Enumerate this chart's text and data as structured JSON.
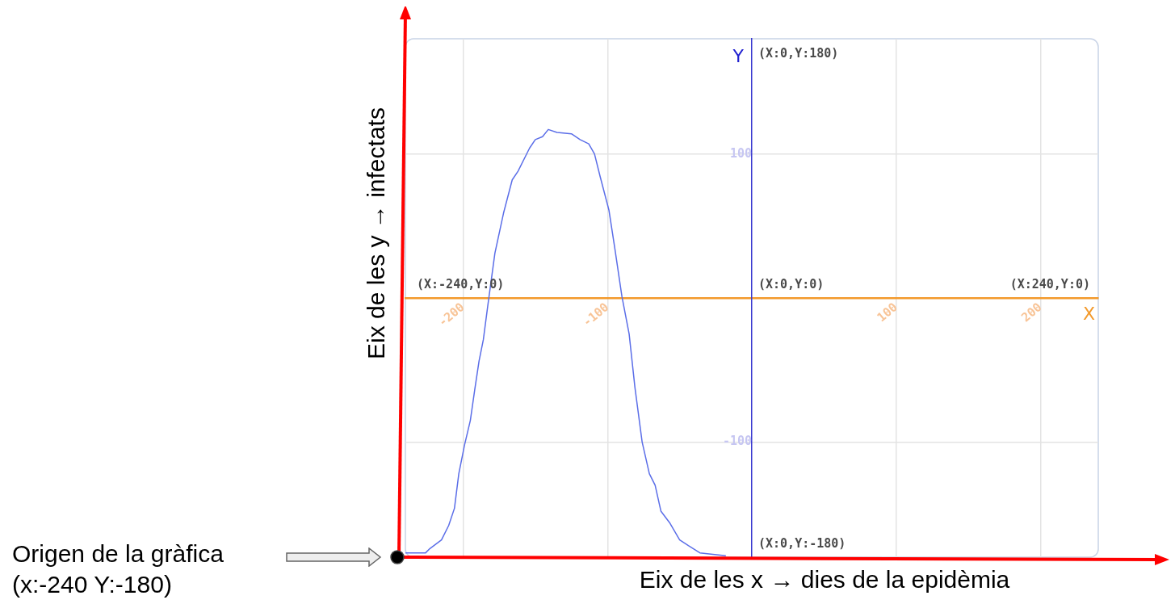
{
  "chart_data": {
    "type": "line",
    "xlabel": "X",
    "ylabel": "Y",
    "xlim": [
      -240,
      240
    ],
    "ylim": [
      -180,
      180
    ],
    "xticks": [
      -200,
      -100,
      100,
      200
    ],
    "yticks": [
      -100,
      100
    ],
    "grid": true,
    "legend": false,
    "marker": "none",
    "line_style": "solid",
    "x": [
      -240,
      -226,
      -223,
      -215,
      -210,
      -206,
      -203,
      -199,
      -195,
      -192,
      -189,
      -186,
      -183,
      -178,
      -172,
      -166,
      -162,
      -154,
      -150,
      -145,
      -141,
      -135,
      -125,
      -119,
      -113,
      -109,
      -105,
      -99,
      -95,
      -90,
      -85,
      -81,
      -76,
      -71,
      -67,
      -63,
      -57,
      -50,
      -44,
      -36,
      -27,
      -18
    ],
    "series": [
      {
        "color": "#5b6ee8",
        "values": [
          -177,
          -177,
          -174,
          -168,
          -158,
          -146,
          -122,
          -102,
          -85,
          -64,
          -44,
          -29,
          -6,
          31,
          59,
          82,
          88,
          104,
          110,
          112,
          117,
          115,
          114,
          110,
          107,
          100,
          84,
          61,
          35,
          1,
          -25,
          -62,
          -100,
          -122,
          -130,
          -148,
          -156,
          -168,
          -172,
          -177,
          -178,
          -179
        ]
      }
    ],
    "annotations": [
      "Eix de les y → infectats",
      "Eix de les x → dies de la epidèmia",
      "(X:-240,Y:0)",
      "(X:0,Y:0)",
      "(X:240,Y:0)",
      "(X:0,Y:180)",
      "(X:0,Y:-180)",
      "Origen de la gràfica\n(x:-240 Y:-180)"
    ]
  }
}
